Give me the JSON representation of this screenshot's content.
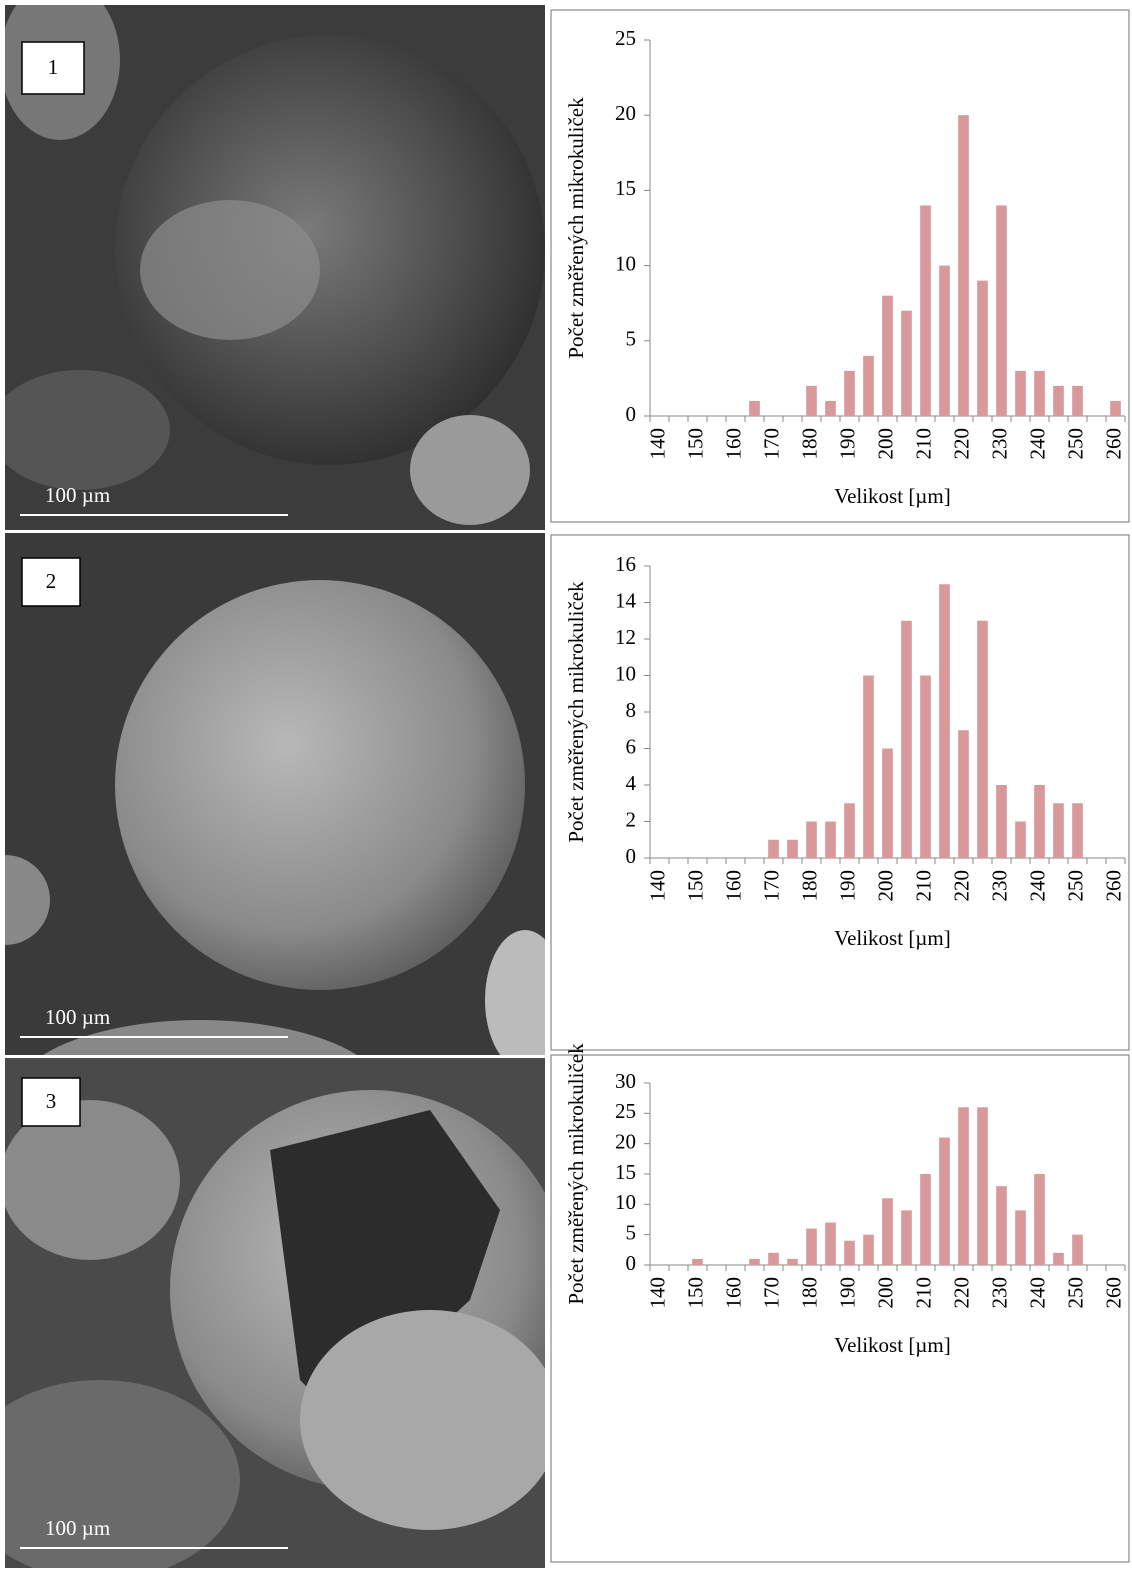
{
  "chart_data": [
    {
      "type": "bar",
      "y_label": "Počet změřených mikrokuliček",
      "x_label": "Velikost [µm]",
      "categories": [
        "140",
        null,
        "150",
        null,
        "160",
        null,
        "170",
        null,
        "180",
        null,
        "190",
        null,
        "200",
        null,
        "210",
        null,
        "220",
        null,
        "230",
        null,
        "240",
        null,
        "250",
        null,
        "260"
      ],
      "values": [
        0,
        0,
        0,
        0,
        0,
        1,
        0,
        0,
        2,
        1,
        3,
        4,
        8,
        7,
        14,
        10,
        20,
        9,
        14,
        3,
        3,
        2,
        2,
        0,
        1
      ],
      "color": "#d9999b",
      "ylim": [
        0,
        25
      ],
      "yticks": [
        0,
        5,
        10,
        15,
        20,
        25
      ],
      "grid": false
    },
    {
      "type": "bar",
      "y_label": "Počet změřených mikrokuliček",
      "x_label": "Velikost [µm]",
      "categories": [
        "140",
        null,
        "150",
        null,
        "160",
        null,
        "170",
        null,
        "180",
        null,
        "190",
        null,
        "200",
        null,
        "210",
        null,
        "220",
        null,
        "230",
        null,
        "240",
        null,
        "250",
        null,
        "260"
      ],
      "values": [
        0,
        0,
        0,
        0,
        0,
        0,
        1,
        1,
        2,
        2,
        3,
        10,
        6,
        13,
        10,
        15,
        7,
        13,
        4,
        2,
        4,
        3,
        3,
        0,
        0
      ],
      "color": "#d9999b",
      "ylim": [
        0,
        16
      ],
      "yticks": [
        0,
        2,
        4,
        6,
        8,
        10,
        12,
        14,
        16
      ],
      "grid": false
    },
    {
      "type": "bar",
      "y_label": "Počet změřených mikrokuliček",
      "x_label": "Velikost [µm]",
      "categories": [
        "140",
        null,
        "150",
        null,
        "160",
        null,
        "170",
        null,
        "180",
        null,
        "190",
        null,
        "200",
        null,
        "210",
        null,
        "220",
        null,
        "230",
        null,
        "240",
        null,
        "250",
        null,
        "260"
      ],
      "values": [
        0,
        0,
        1,
        0,
        0,
        1,
        2,
        1,
        6,
        7,
        4,
        5,
        11,
        9,
        15,
        21,
        26,
        26,
        13,
        9,
        15,
        2,
        5,
        0,
        0
      ],
      "color": "#d9999b",
      "ylim": [
        0,
        30
      ],
      "yticks": [
        0,
        5,
        10,
        15,
        20,
        25,
        30
      ],
      "grid": false
    }
  ],
  "panels": [
    {
      "label": "1",
      "scale_bar": "100 µm"
    },
    {
      "label": "2",
      "scale_bar": "100 µm"
    },
    {
      "label": "3",
      "scale_bar": "100 µm"
    }
  ]
}
